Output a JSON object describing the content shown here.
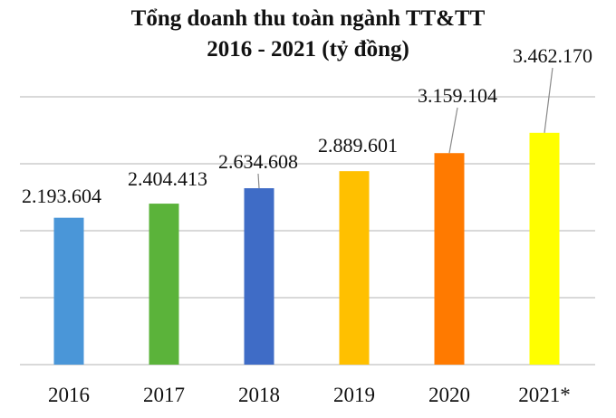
{
  "chart_data": {
    "type": "bar",
    "title": [
      "Tổng doanh thu toàn ngành TT&TT",
      "2016 - 2021 (tỷ đồng)"
    ],
    "categories": [
      "2016",
      "2017",
      "2018",
      "2019",
      "2020",
      "2021*"
    ],
    "values": [
      2193604,
      2404413,
      2634608,
      2889601,
      3159104,
      3462170
    ],
    "data_labels": [
      "2.193.604",
      "2.404.413",
      "2.634.608",
      "2.889.601",
      "3.159.104",
      "3.462.170"
    ],
    "colors": [
      "#4a96d8",
      "#5bb33a",
      "#3f6cc6",
      "#ffc000",
      "#ff7a00",
      "#ffff00"
    ],
    "xlabel": "",
    "ylabel": "",
    "ylim": [
      0,
      4000000
    ],
    "yticks": [
      0,
      1000000,
      2000000,
      3000000,
      4000000
    ],
    "grid": true,
    "legend": "none"
  }
}
